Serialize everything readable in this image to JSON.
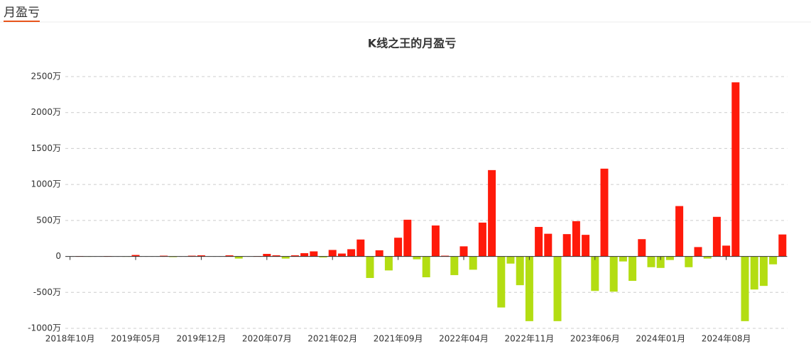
{
  "header": {
    "title": "月盈亏"
  },
  "chart_data": {
    "type": "bar",
    "title": "K线之王的月盈亏",
    "categories": [
      "2018年10月",
      null,
      null,
      null,
      null,
      null,
      null,
      "2019年05月",
      null,
      null,
      null,
      null,
      null,
      null,
      "2019年12月",
      null,
      null,
      null,
      null,
      null,
      null,
      "2020年07月",
      null,
      null,
      null,
      null,
      null,
      null,
      "2021年02月",
      null,
      null,
      null,
      null,
      null,
      null,
      "2021年09月",
      null,
      null,
      null,
      null,
      null,
      null,
      "2022年04月",
      null,
      null,
      null,
      null,
      null,
      null,
      "2022年11月",
      null,
      null,
      null,
      null,
      null,
      null,
      "2023年06月",
      null,
      null,
      null,
      null,
      null,
      null,
      "2024年01月",
      null,
      null,
      null,
      null,
      null,
      null,
      "2024年08月",
      null,
      null,
      null,
      null,
      null,
      null
    ],
    "values": [
      0,
      5,
      -5,
      0,
      5,
      0,
      -5,
      20,
      0,
      0,
      10,
      -10,
      0,
      10,
      15,
      0,
      0,
      15,
      -30,
      0,
      5,
      35,
      15,
      -30,
      15,
      45,
      70,
      -15,
      90,
      40,
      100,
      235,
      -300,
      85,
      -195,
      260,
      510,
      -40,
      -290,
      430,
      10,
      -260,
      140,
      -185,
      470,
      1200,
      -710,
      -100,
      -400,
      -900,
      410,
      315,
      -900,
      310,
      490,
      300,
      -480,
      1220,
      -490,
      -70,
      -340,
      240,
      -150,
      -160,
      -50,
      700,
      -150,
      130,
      -30,
      550,
      150,
      2420,
      -900,
      -460,
      -410,
      -110,
      305
    ],
    "colors": {
      "positive": "#ff1a0a",
      "negative": "#b3dd12"
    },
    "ylim": [
      -1000,
      2500
    ],
    "yticks": [
      {
        "value": -1000,
        "label": "-1000万"
      },
      {
        "value": -500,
        "label": "-500万"
      },
      {
        "value": 0,
        "label": "0"
      },
      {
        "value": 500,
        "label": "500万"
      },
      {
        "value": 1000,
        "label": "1000万"
      },
      {
        "value": 1500,
        "label": "1500万"
      },
      {
        "value": 2000,
        "label": "2000万"
      },
      {
        "value": 2500,
        "label": "2500万"
      }
    ],
    "grid": true
  }
}
